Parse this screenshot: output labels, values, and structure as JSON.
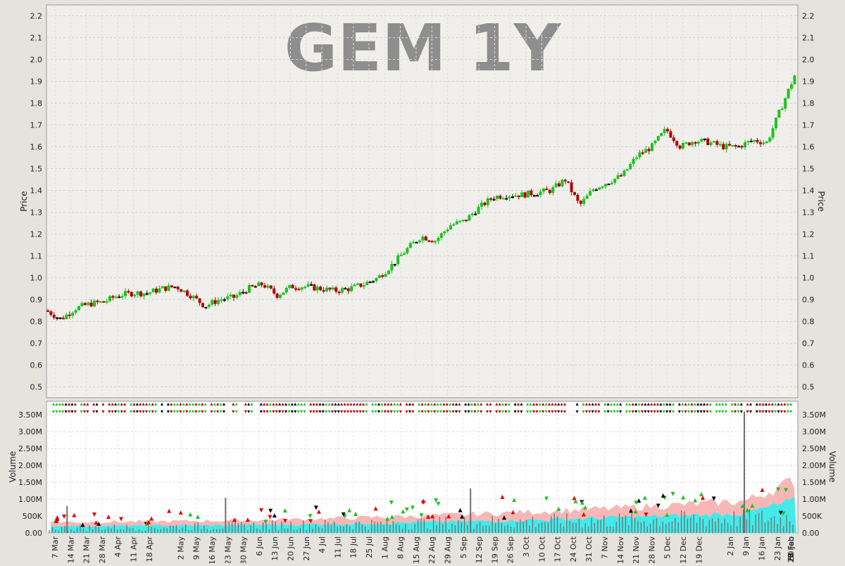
{
  "chart_data": [
    {
      "type": "candlestick",
      "title": "GEM 1Y",
      "ylabel": "Price",
      "ylim": [
        0.45,
        2.25
      ],
      "yticks": [
        "0.5",
        "0.6",
        "0.7",
        "0.8",
        "0.9",
        "1.0",
        "1.1",
        "1.2",
        "1.3",
        "1.4",
        "1.5",
        "1.6",
        "1.7",
        "1.8",
        "1.9",
        "2.0",
        "2.1",
        "2.2"
      ],
      "x_range": [
        "2016-03-04",
        "2017-03-04"
      ],
      "grid": true,
      "colors": {
        "up": "#1ec21e",
        "down": "#b00000",
        "flat": "#000000"
      },
      "series": [
        {
          "date": "2016-03-04",
          "close": 0.85
        },
        {
          "date": "2016-03-11",
          "close": 0.81
        },
        {
          "date": "2016-03-18",
          "close": 0.86
        },
        {
          "date": "2016-03-25",
          "close": 0.88
        },
        {
          "date": "2016-04-01",
          "close": 0.89
        },
        {
          "date": "2016-04-08",
          "close": 0.92
        },
        {
          "date": "2016-04-15",
          "close": 0.93
        },
        {
          "date": "2016-04-22",
          "close": 0.93
        },
        {
          "date": "2016-04-29",
          "close": 0.95
        },
        {
          "date": "2016-05-06",
          "close": 0.96
        },
        {
          "date": "2016-05-13",
          "close": 0.92
        },
        {
          "date": "2016-05-20",
          "close": 0.87
        },
        {
          "date": "2016-05-27",
          "close": 0.9
        },
        {
          "date": "2016-06-03",
          "close": 0.91
        },
        {
          "date": "2016-06-10",
          "close": 0.95
        },
        {
          "date": "2016-06-17",
          "close": 0.97
        },
        {
          "date": "2016-06-24",
          "close": 0.92
        },
        {
          "date": "2016-07-01",
          "close": 0.96
        },
        {
          "date": "2016-07-08",
          "close": 0.96
        },
        {
          "date": "2016-07-15",
          "close": 0.95
        },
        {
          "date": "2016-07-22",
          "close": 0.94
        },
        {
          "date": "2016-07-29",
          "close": 0.95
        },
        {
          "date": "2016-08-05",
          "close": 0.97
        },
        {
          "date": "2016-08-12",
          "close": 1.0
        },
        {
          "date": "2016-08-19",
          "close": 1.06
        },
        {
          "date": "2016-08-26",
          "close": 1.13
        },
        {
          "date": "2016-09-02",
          "close": 1.19
        },
        {
          "date": "2016-09-09",
          "close": 1.17
        },
        {
          "date": "2016-09-16",
          "close": 1.24
        },
        {
          "date": "2016-09-23",
          "close": 1.26
        },
        {
          "date": "2016-09-30",
          "close": 1.32
        },
        {
          "date": "2016-10-07",
          "close": 1.37
        },
        {
          "date": "2016-10-14",
          "close": 1.38
        },
        {
          "date": "2016-10-21",
          "close": 1.38
        },
        {
          "date": "2016-10-28",
          "close": 1.39
        },
        {
          "date": "2016-11-04",
          "close": 1.4
        },
        {
          "date": "2016-11-11",
          "close": 1.45
        },
        {
          "date": "2016-11-18",
          "close": 1.33
        },
        {
          "date": "2016-11-25",
          "close": 1.41
        },
        {
          "date": "2016-12-02",
          "close": 1.44
        },
        {
          "date": "2016-12-09",
          "close": 1.47
        },
        {
          "date": "2016-12-16",
          "close": 1.56
        },
        {
          "date": "2016-12-23",
          "close": 1.6
        },
        {
          "date": "2016-12-30",
          "close": 1.68
        },
        {
          "date": "2017-01-06",
          "close": 1.6
        },
        {
          "date": "2017-01-13",
          "close": 1.63
        },
        {
          "date": "2017-01-20",
          "close": 1.62
        },
        {
          "date": "2017-01-27",
          "close": 1.6
        },
        {
          "date": "2017-02-03",
          "close": 1.6
        },
        {
          "date": "2017-02-10",
          "close": 1.63
        },
        {
          "date": "2017-02-17",
          "close": 1.62
        },
        {
          "date": "2017-02-24",
          "close": 1.78
        },
        {
          "date": "2017-03-03",
          "close": 1.94
        }
      ]
    },
    {
      "type": "bar",
      "ylabel": "Volume",
      "ylim": [
        0,
        3900000
      ],
      "yticks": [
        "0.00",
        "500K",
        "1.00M",
        "1.50M",
        "2.00M",
        "2.50M",
        "3.00M",
        "3.50M"
      ],
      "grid": true,
      "moving_average_bands": [
        {
          "color": "#f6aaaa",
          "level": 1300000
        },
        {
          "color": "#2ff0f0",
          "level": 800000
        }
      ],
      "bar_color": "#707070",
      "notable_peaks": [
        {
          "date": "2017-02-06",
          "value": 3600000
        },
        {
          "date": "2016-09-26",
          "value": 1320000
        },
        {
          "date": "2016-05-30",
          "value": 1040000
        },
        {
          "date": "2016-03-14",
          "value": 800000
        }
      ]
    }
  ],
  "x_axis": {
    "tick_labels": [
      "7 Mar",
      "14 Mar",
      "21 Mar",
      "28 Mar",
      "4 Apr",
      "11 Apr",
      "18 Apr",
      "2 May",
      "9 May",
      "16 May",
      "23 May",
      "30 May",
      "6 Jun",
      "13 Jun",
      "20 Jun",
      "27 Jun",
      "4 Jul",
      "11 Jul",
      "18 Jul",
      "25 Jul",
      "1 Aug",
      "8 Aug",
      "15 Aug",
      "22 Aug",
      "29 Aug",
      "5 Sep",
      "12 Sep",
      "19 Sep",
      "26 Sep",
      "3 Oct",
      "10 Oct",
      "17 Oct",
      "24 Oct",
      "31 Oct",
      "7 Nov",
      "14 Nov",
      "21 Nov",
      "28 Nov",
      "5 Dec",
      "12 Dec",
      "19 Dec",
      "2 Jan",
      "9 Jan",
      "16 Jan",
      "23 Jan",
      "30 Jan",
      "6 Feb",
      "13 Feb",
      "20 Feb",
      "27 Feb"
    ]
  }
}
